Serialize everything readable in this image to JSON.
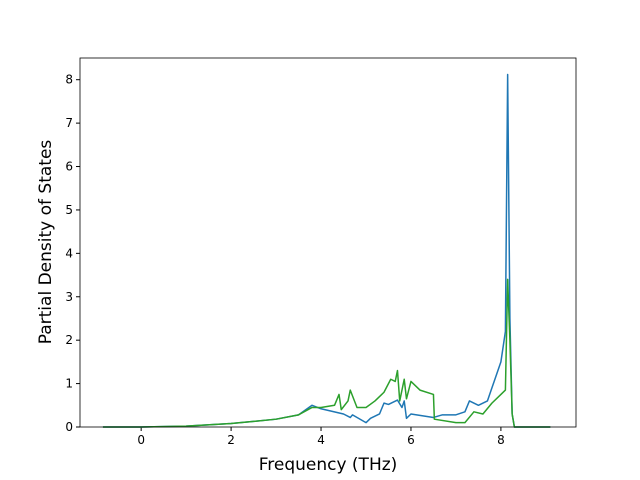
{
  "chart_data": {
    "type": "line",
    "xlabel": "Frequency (THz)",
    "ylabel": "Partial Density of States",
    "xlim": [
      -1.36,
      9.67
    ],
    "ylim": [
      0,
      8.5
    ],
    "xticks": [
      0,
      2,
      4,
      6,
      8
    ],
    "yticks": [
      0,
      1,
      2,
      3,
      4,
      5,
      6,
      7,
      8
    ],
    "series": [
      {
        "color": "#1f77b4",
        "x": [
          -0.85,
          0,
          1,
          2,
          3,
          3.5,
          3.8,
          4,
          4.5,
          4.65,
          4.7,
          5,
          5.1,
          5.3,
          5.4,
          5.5,
          5.7,
          5.8,
          5.85,
          5.9,
          6.0,
          6.5,
          6.7,
          7,
          7.2,
          7.3,
          7.5,
          7.7,
          7.8,
          8.0,
          8.1,
          8.15,
          8.2,
          8.25,
          8.3,
          9.1
        ],
        "values": [
          0,
          0,
          0.02,
          0.08,
          0.18,
          0.28,
          0.5,
          0.42,
          0.3,
          0.22,
          0.28,
          0.1,
          0.2,
          0.3,
          0.55,
          0.52,
          0.62,
          0.45,
          0.6,
          0.2,
          0.3,
          0.22,
          0.28,
          0.28,
          0.35,
          0.6,
          0.5,
          0.6,
          0.9,
          1.5,
          2.2,
          8.12,
          2.5,
          0.3,
          0,
          0
        ]
      },
      {
        "color": "#2ca02c",
        "x": [
          -0.85,
          0,
          1,
          2,
          3,
          3.5,
          3.8,
          4.0,
          4.3,
          4.4,
          4.45,
          4.6,
          4.65,
          4.8,
          5.0,
          5.2,
          5.4,
          5.55,
          5.65,
          5.7,
          5.75,
          5.85,
          5.9,
          6.0,
          6.2,
          6.5,
          6.52,
          7.0,
          7.2,
          7.4,
          7.6,
          7.8,
          8.0,
          8.1,
          8.15,
          8.2,
          8.25,
          8.3,
          9.1
        ],
        "values": [
          0,
          0,
          0.02,
          0.08,
          0.18,
          0.28,
          0.45,
          0.45,
          0.5,
          0.75,
          0.4,
          0.6,
          0.85,
          0.45,
          0.45,
          0.6,
          0.8,
          1.1,
          1.05,
          1.3,
          0.6,
          1.1,
          0.65,
          1.05,
          0.85,
          0.75,
          0.18,
          0.1,
          0.1,
          0.35,
          0.3,
          0.55,
          0.75,
          0.85,
          3.4,
          2.0,
          0.3,
          0,
          0
        ]
      }
    ]
  }
}
